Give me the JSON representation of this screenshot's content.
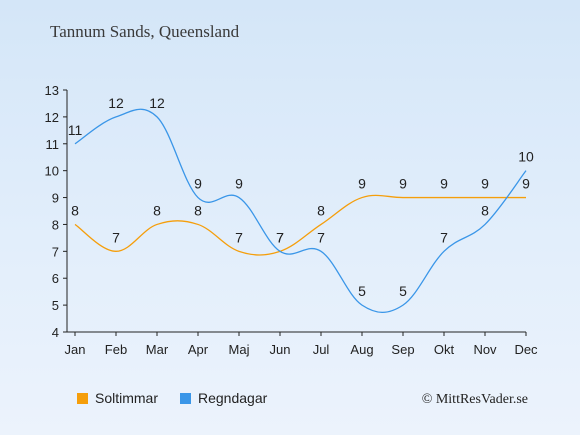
{
  "chart_data": {
    "type": "line",
    "title": "Tannum Sands, Queensland",
    "categories": [
      "Jan",
      "Feb",
      "Mar",
      "Apr",
      "Maj",
      "Jun",
      "Jul",
      "Aug",
      "Sep",
      "Okt",
      "Nov",
      "Dec"
    ],
    "series": [
      {
        "name": "Soltimmar",
        "color": "#f59e0b",
        "values": [
          8,
          7,
          8,
          8,
          7,
          7,
          8,
          9,
          9,
          9,
          9,
          9
        ]
      },
      {
        "name": "Regndagar",
        "color": "#3a96e8",
        "values": [
          11,
          12,
          12,
          9,
          9,
          7,
          7,
          5,
          5,
          7,
          8,
          10
        ]
      }
    ],
    "ylim": [
      4,
      13
    ],
    "yticks": [
      4,
      5,
      6,
      7,
      8,
      9,
      10,
      11,
      12,
      13
    ],
    "grid": false,
    "legend": "bottom-left"
  },
  "copyright": "© MittResVader.se"
}
